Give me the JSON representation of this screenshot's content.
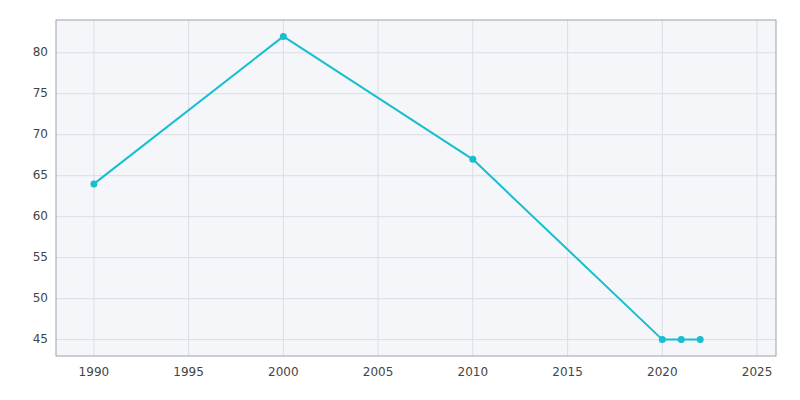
{
  "chart_data": {
    "type": "line",
    "x": [
      1990,
      2000,
      2010,
      2020,
      2021,
      2022
    ],
    "values": [
      64,
      82,
      67,
      45,
      45,
      45
    ],
    "color": "#17becf",
    "marker": "circle",
    "xlim": [
      1988,
      2026
    ],
    "ylim": [
      43,
      84
    ],
    "xticks": [
      1990,
      1995,
      2000,
      2005,
      2010,
      2015,
      2020,
      2025
    ],
    "yticks": [
      45,
      50,
      55,
      60,
      65,
      70,
      75,
      80
    ],
    "grid": true
  }
}
